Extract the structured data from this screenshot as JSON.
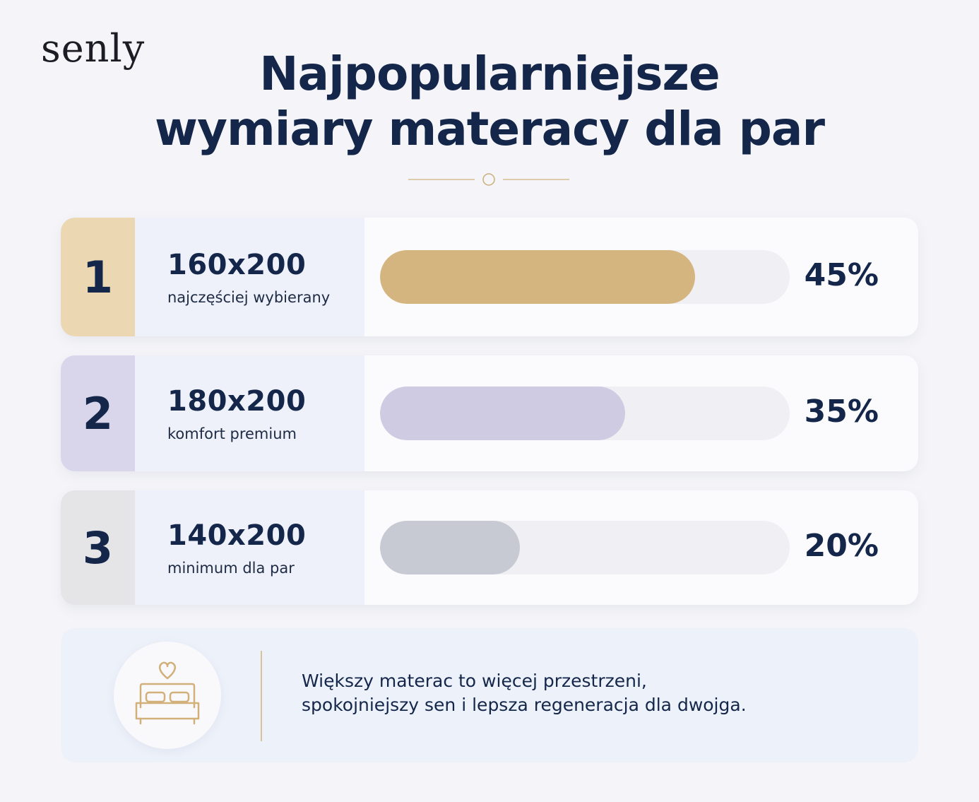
{
  "brand": {
    "logo": "senly"
  },
  "header": {
    "title_line1": "Najpopularniejsze",
    "title_line2": "wymiary materacy dla par"
  },
  "chart_data": {
    "type": "bar",
    "orientation": "horizontal",
    "title": "Najpopularniejsze wymiary materacy dla par",
    "categories": [
      "160x200",
      "180x200",
      "140x200"
    ],
    "values": [
      45,
      35,
      20
    ],
    "unit": "%",
    "xlim": [
      0,
      100
    ],
    "rows": [
      {
        "rank": "1",
        "size": "160x200",
        "subtitle": "najczęściej wybierany",
        "value": 45,
        "label": "45%",
        "color": "#d4b47f",
        "accent": "#ebd8b3"
      },
      {
        "rank": "2",
        "size": "180x200",
        "subtitle": "komfort premium",
        "value": 35,
        "label": "35%",
        "color": "#cfcbe3",
        "accent": "#d9d6eb"
      },
      {
        "rank": "3",
        "size": "140x200",
        "subtitle": "minimum dla par",
        "value": 20,
        "label": "20%",
        "color": "#c8cad3",
        "accent": "#e5e5e8"
      }
    ]
  },
  "note": {
    "icon": "bed-heart-icon",
    "line1": "Większy materac to więcej przestrzeni,",
    "line2": "spokojniejszy sen i lepsza regeneracja dla dwojga."
  },
  "colors": {
    "navy": "#14274a",
    "gold": "#d4b47f",
    "lavender": "#cfcbe3",
    "grey": "#c8cad3"
  }
}
